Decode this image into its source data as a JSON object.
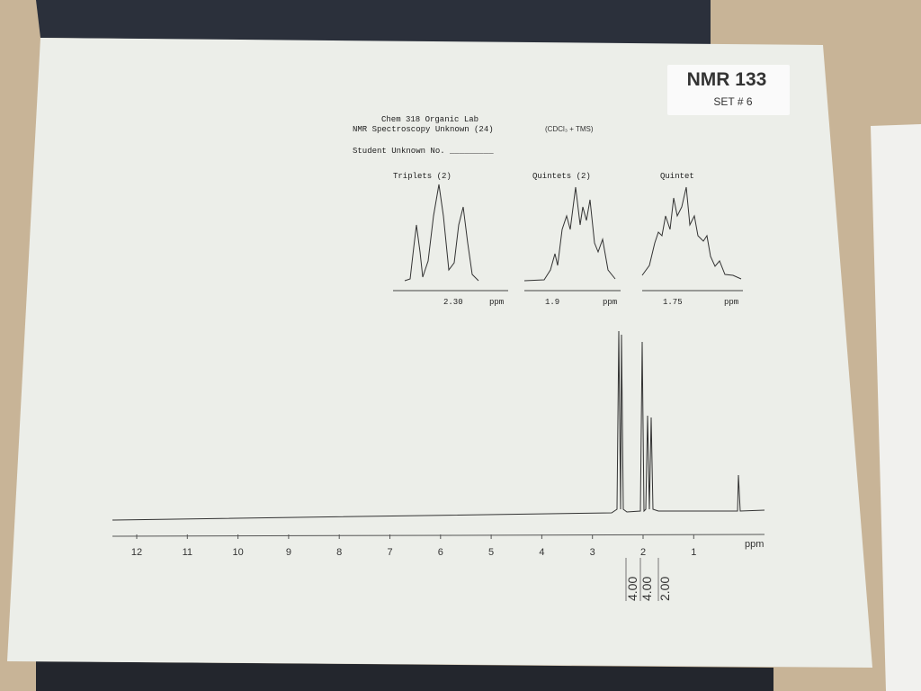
{
  "label": {
    "title": "NMR 133",
    "set": "SET # 6"
  },
  "header": {
    "line1": "Chem 318 Organic Lab",
    "line2": "NMR Spectroscopy Unknown (24)",
    "solvent": "(CDCl₃ + TMS)",
    "student": "Student Unknown No. _________"
  },
  "insets": [
    {
      "title": "Triplets (2)",
      "tick": "2.30",
      "unit": "ppm"
    },
    {
      "title": "Quintets (2)",
      "tick": "1.9",
      "unit": "ppm"
    },
    {
      "title": "Quintet",
      "tick": "1.75",
      "unit": "ppm"
    }
  ],
  "axis": {
    "ticks": [
      "12",
      "11",
      "10",
      "9",
      "8",
      "7",
      "6",
      "5",
      "4",
      "3",
      "2",
      "1"
    ],
    "unit": "ppm"
  },
  "integrations": [
    "4.00",
    "4.00",
    "2.00"
  ]
}
